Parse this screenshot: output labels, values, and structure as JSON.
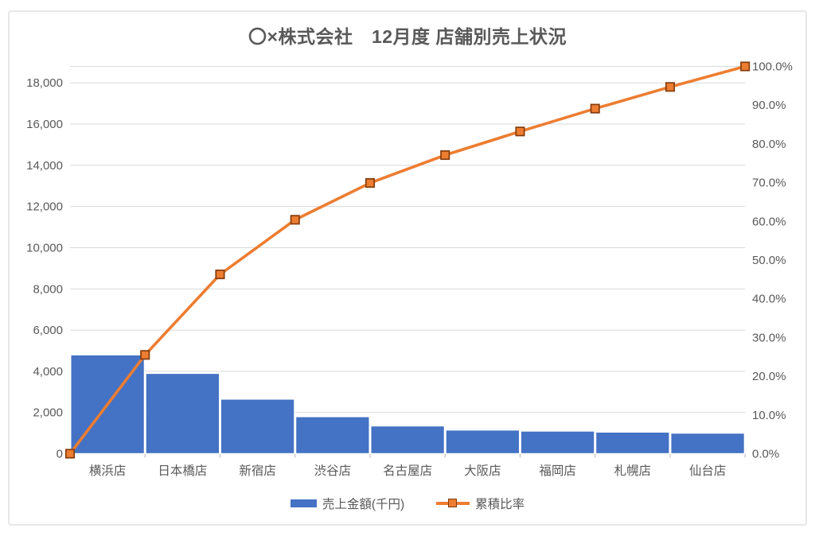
{
  "chart_data": {
    "type": "bar",
    "variant": "pareto-combo-bar-line",
    "title": "〇×株式会社　12月度 店舗別売上状況",
    "categories": [
      "横浜店",
      "日本橋店",
      "新宿店",
      "渋谷店",
      "名古屋店",
      "大阪店",
      "福岡店",
      "札幌店",
      "仙台店"
    ],
    "series": [
      {
        "name": "売上金額(千円)",
        "type": "bar",
        "axis": "left",
        "color": "#4472C4",
        "bar_border_color": "#FFFFFF",
        "values": [
          4800,
          3900,
          2650,
          1800,
          1350,
          1150,
          1100,
          1050,
          1000
        ]
      },
      {
        "name": "累積比率",
        "type": "line",
        "axis": "right",
        "color": "#ED7D31",
        "marker": "square",
        "marker_fill": "#ED7D31",
        "marker_border": "#843C0C",
        "x_mode": "category-boundaries",
        "values_pct": [
          0.0,
          25.5,
          46.3,
          60.4,
          69.9,
          77.1,
          83.2,
          89.1,
          94.7,
          100.0
        ]
      }
    ],
    "left_axis": {
      "min": 0,
      "max": 18800,
      "major_unit": 2000,
      "tick_labels": [
        "0",
        "2,000",
        "4,000",
        "6,000",
        "8,000",
        "10,000",
        "12,000",
        "14,000",
        "16,000",
        "18,000"
      ]
    },
    "right_axis": {
      "min": 0,
      "max": 100,
      "major_unit": 10,
      "tick_labels": [
        "0.0%",
        "10.0%",
        "20.0%",
        "30.0%",
        "40.0%",
        "50.0%",
        "60.0%",
        "70.0%",
        "80.0%",
        "90.0%",
        "100.0%"
      ]
    },
    "grid": "horizontal-major-on",
    "legend_position": "bottom",
    "colors": {
      "text": "#595959",
      "gridline": "#D9D9D9",
      "axis_line": "#BFBFBF",
      "frame_border": "#E7E7E7"
    }
  },
  "legend": {
    "items": [
      {
        "label": "売上金額(千円)",
        "swatch": "bar-blue"
      },
      {
        "label": "累積比率",
        "swatch": "line-orange-square-marker"
      }
    ]
  }
}
